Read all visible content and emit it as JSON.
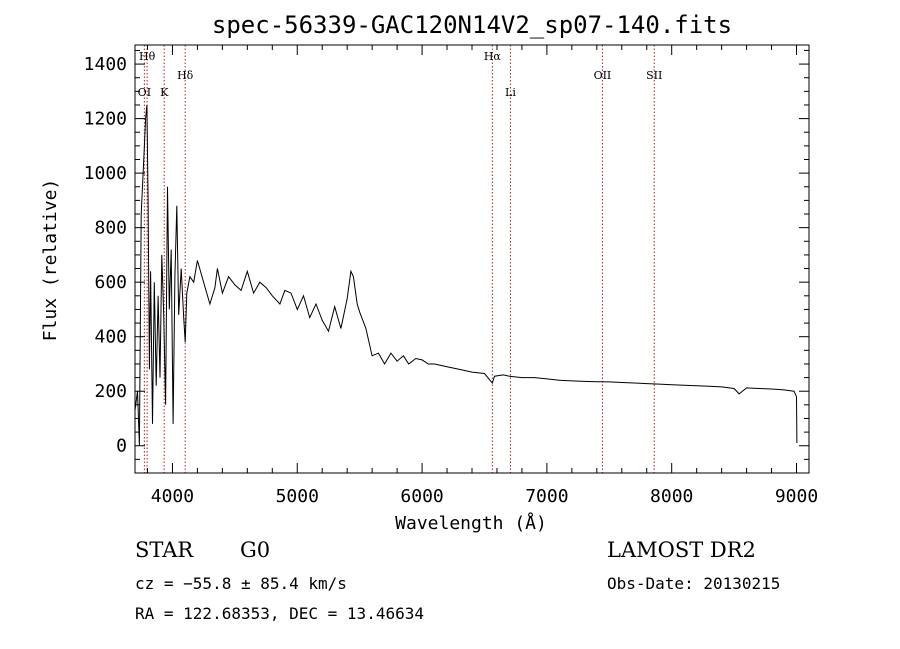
{
  "chart_data": {
    "type": "line",
    "title": "spec-56339-GAC120N14V2_sp07-140.fits",
    "xlabel": "Wavelength (Å)",
    "ylabel": "Flux (relative)",
    "xlim": [
      3700,
      9100
    ],
    "ylim": [
      -100,
      1470
    ],
    "xticks": [
      4000,
      5000,
      6000,
      7000,
      8000,
      9000
    ],
    "yticks": [
      0,
      200,
      400,
      600,
      800,
      1000,
      1200,
      1400
    ],
    "grid": false,
    "series": [
      {
        "x": [
          3700,
          3720,
          3735,
          3750,
          3765,
          3775,
          3785,
          3795,
          3805,
          3815,
          3825,
          3840,
          3855,
          3870,
          3885,
          3900,
          3915,
          3930,
          3945,
          3960,
          3975,
          3990,
          4005,
          4020,
          4035,
          4050,
          4070,
          4090,
          4102,
          4115,
          4140,
          4170,
          4200,
          4250,
          4300,
          4340,
          4360,
          4400,
          4450,
          4500,
          4550,
          4600,
          4650,
          4700,
          4750,
          4800,
          4861,
          4900,
          4950,
          5000,
          5050,
          5100,
          5150,
          5200,
          5250,
          5300,
          5350,
          5400,
          5430,
          5450,
          5480,
          5500,
          5550,
          5600,
          5650,
          5700,
          5750,
          5800,
          5850,
          5893,
          5950,
          6000,
          6050,
          6100,
          6200,
          6300,
          6400,
          6500,
          6563,
          6580,
          6650,
          6700,
          6800,
          6900,
          7000,
          7100,
          7200,
          7300,
          7400,
          7500,
          7600,
          7700,
          7800,
          7900,
          8000,
          8100,
          8200,
          8300,
          8400,
          8500,
          8540,
          8600,
          8700,
          8800,
          8900,
          8980,
          9000,
          9003
        ],
        "y": [
          130,
          200,
          0,
          850,
          1000,
          1100,
          1200,
          1250,
          900,
          280,
          640,
          80,
          600,
          220,
          550,
          250,
          700,
          480,
          150,
          950,
          500,
          720,
          80,
          620,
          880,
          480,
          650,
          470,
          380,
          560,
          620,
          600,
          680,
          600,
          520,
          580,
          650,
          560,
          620,
          590,
          570,
          640,
          560,
          600,
          580,
          550,
          520,
          570,
          560,
          500,
          550,
          470,
          520,
          460,
          420,
          510,
          430,
          540,
          640,
          620,
          520,
          490,
          430,
          330,
          340,
          300,
          340,
          310,
          330,
          300,
          320,
          315,
          300,
          300,
          290,
          280,
          270,
          265,
          230,
          255,
          260,
          255,
          250,
          250,
          245,
          240,
          238,
          236,
          235,
          234,
          232,
          230,
          228,
          226,
          224,
          222,
          220,
          218,
          216,
          210,
          190,
          212,
          210,
          208,
          205,
          200,
          180,
          10
        ]
      }
    ],
    "lines": [
      {
        "label": "Hθ",
        "x": 3797
      },
      {
        "label": "OI",
        "x": 3775
      },
      {
        "label": "K",
        "x": 3934
      },
      {
        "label": "Hδ",
        "x": 4102
      },
      {
        "label": "Hα",
        "x": 6563
      },
      {
        "label": "Li",
        "x": 6708
      },
      {
        "label": "OII",
        "x": 7445
      },
      {
        "label": "SII",
        "x": 7860
      }
    ],
    "line_color": "#b22222",
    "spectrum_color": "#000000"
  },
  "info": {
    "object": "STAR",
    "subclass": "G0",
    "survey": "LAMOST DR2",
    "cz": "cz = −55.8 ± 85.4 km/s",
    "obs_date": "Obs-Date: 20130215",
    "coords": "RA = 122.68353, DEC =  13.46634"
  }
}
